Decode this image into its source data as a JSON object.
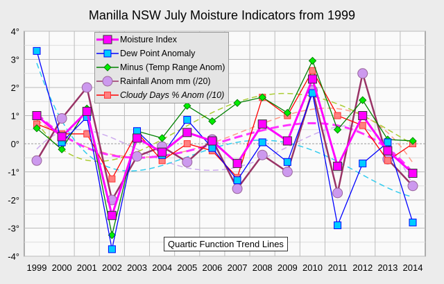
{
  "chart_data": {
    "type": "line",
    "title": "Manilla NSW July Moisture Indicators from 1999",
    "x": [
      1999,
      2000,
      2001,
      2002,
      2003,
      2004,
      2005,
      2006,
      2007,
      2008,
      2009,
      2010,
      2011,
      2012,
      2013,
      2014
    ],
    "ylim": [
      -4,
      4
    ],
    "yticks": [
      "4°",
      "3°",
      "2°",
      "1°",
      "0°",
      "-1°",
      "-2°",
      "-3°",
      "-4°"
    ],
    "grid": true,
    "legend": "top-left",
    "annotation": "Quartic Function Trend Lines",
    "trend": "quartic",
    "series": [
      {
        "name": "Moisture Index",
        "color": "#ff00ff",
        "marker": "square-large",
        "trend_color": "#ff33ff",
        "values": [
          1.0,
          0.25,
          1.15,
          -2.55,
          0.2,
          -0.3,
          0.4,
          0.1,
          -0.7,
          0.7,
          0.1,
          2.3,
          -0.8,
          1.0,
          -0.25,
          -1.05
        ]
      },
      {
        "name": "Dew Point Anomaly",
        "color": "#0000ff",
        "marker": "square",
        "marker_fill": "#00ccff",
        "trend_color": "#33ccee",
        "values": [
          3.3,
          0.05,
          0.95,
          -3.75,
          0.45,
          -0.4,
          0.85,
          -0.15,
          -1.3,
          0.05,
          -0.65,
          1.8,
          -2.9,
          -0.7,
          0.05,
          -2.8
        ]
      },
      {
        "name": "Minus (Temp Range Anom)",
        "color": "#008000",
        "marker": "diamond",
        "marker_fill": "#00ee00",
        "trend_color": "#aacc33",
        "values": [
          0.55,
          -0.2,
          1.25,
          -3.25,
          0.45,
          0.2,
          1.35,
          0.8,
          1.45,
          1.65,
          1.1,
          2.95,
          0.5,
          1.55,
          0.15,
          0.1
        ]
      },
      {
        "name": "Rainfall Anom mm (/20)",
        "color": "#993366",
        "marker": "circle",
        "marker_fill": "#cc99ee",
        "trend_color": "#ccaaee",
        "values": [
          -0.6,
          0.9,
          2.0,
          -2.0,
          -0.45,
          -0.1,
          -0.65,
          0.15,
          -1.6,
          -0.4,
          -1.0,
          1.9,
          -1.75,
          2.5,
          -0.55,
          -1.5
        ]
      },
      {
        "name": "Cloudy Days % Anom (/10)",
        "color": "#ff0000",
        "marker": "square-small",
        "marker_fill": "#ff8080",
        "trend_color": "#ff9988",
        "italic": true,
        "values": [
          0.7,
          0.35,
          0.35,
          -1.25,
          0.4,
          -0.6,
          0.0,
          -0.25,
          -1.2,
          1.65,
          1.0,
          2.6,
          1.0,
          0.65,
          -0.6,
          0.0
        ]
      }
    ]
  }
}
